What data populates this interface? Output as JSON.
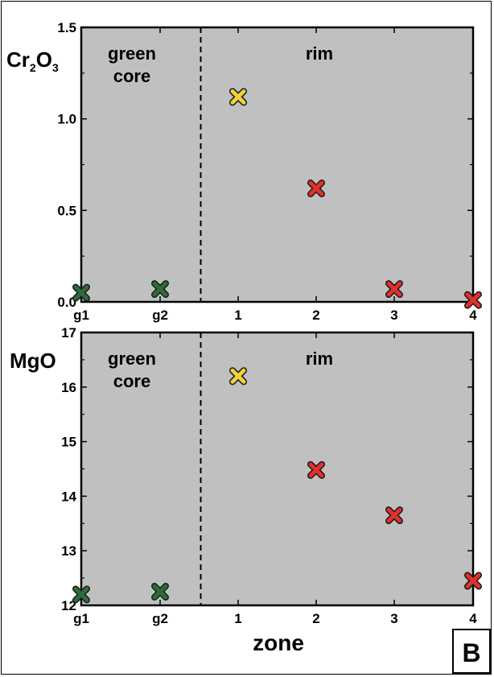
{
  "panel_label": "B",
  "chart_data": [
    {
      "type": "scatter",
      "title": "",
      "ylabel": "Cr2O3",
      "ylabel_parts": {
        "base1": "Cr",
        "sub1": "2",
        "base2": "O",
        "sub2": "3"
      },
      "xlabel": "",
      "categories": [
        "g1",
        "g2",
        "1",
        "2",
        "3",
        "4"
      ],
      "ylim": [
        0,
        1.5
      ],
      "yticks": [
        "0.0",
        "0.5",
        "1.0",
        "1.5"
      ],
      "yticks_values": [
        0,
        0.5,
        1.0,
        1.5
      ],
      "regions": [
        {
          "name": "green-core",
          "line1": "green",
          "line2": "core"
        },
        {
          "name": "rim",
          "line1": "rim"
        }
      ],
      "divider_after": "g2",
      "series": [
        {
          "name": "green core",
          "color": "#2e6b3c",
          "points": [
            {
              "x": "g1",
              "y": 0.05
            },
            {
              "x": "g2",
              "y": 0.07
            }
          ]
        },
        {
          "name": "rim yellow",
          "color": "#f1d23a",
          "points": [
            {
              "x": "1",
              "y": 1.12
            }
          ]
        },
        {
          "name": "rim red",
          "color": "#e0302a",
          "points": [
            {
              "x": "2",
              "y": 0.62
            },
            {
              "x": "3",
              "y": 0.07
            },
            {
              "x": "4",
              "y": 0.01
            }
          ]
        }
      ]
    },
    {
      "type": "scatter",
      "title": "",
      "ylabel": "MgO",
      "xlabel": "zone",
      "categories": [
        "g1",
        "g2",
        "1",
        "2",
        "3",
        "4"
      ],
      "ylim": [
        12,
        17
      ],
      "yticks": [
        "12",
        "13",
        "14",
        "15",
        "16",
        "17"
      ],
      "yticks_values": [
        12,
        13,
        14,
        15,
        16,
        17
      ],
      "regions": [
        {
          "name": "green-core",
          "line1": "green",
          "line2": "core"
        },
        {
          "name": "rim",
          "line1": "rim"
        }
      ],
      "divider_after": "g2",
      "series": [
        {
          "name": "green core",
          "color": "#2e6b3c",
          "points": [
            {
              "x": "g1",
              "y": 12.2
            },
            {
              "x": "g2",
              "y": 12.25
            }
          ]
        },
        {
          "name": "rim yellow",
          "color": "#f1d23a",
          "points": [
            {
              "x": "1",
              "y": 16.2
            }
          ]
        },
        {
          "name": "rim red",
          "color": "#e0302a",
          "points": [
            {
              "x": "2",
              "y": 14.48
            },
            {
              "x": "3",
              "y": 13.65
            },
            {
              "x": "4",
              "y": 12.45
            }
          ]
        }
      ]
    }
  ]
}
